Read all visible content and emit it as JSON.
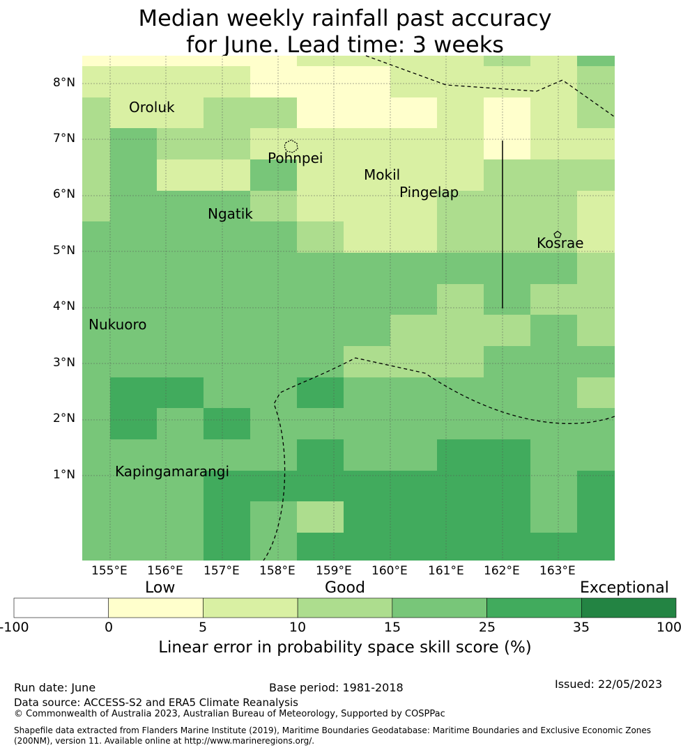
{
  "title": {
    "line1": "Median weekly rainfall past accuracy",
    "line2": "for June. Lead time: 3 weeks"
  },
  "map": {
    "lon_range": [
      154.5,
      164.0
    ],
    "lat_range": [
      -0.5,
      8.5
    ],
    "lon_ticks": [
      "155°E",
      "156°E",
      "157°E",
      "158°E",
      "159°E",
      "160°E",
      "161°E",
      "162°E",
      "163°E"
    ],
    "lat_ticks": [
      "8°N",
      "7°N",
      "6°N",
      "5°N",
      "4°N",
      "3°N",
      "2°N",
      "1°N"
    ],
    "places": [
      "Oroluk",
      "Pohnpei",
      "Mokil",
      "Pingelap",
      "Ngatik",
      "Kosrae",
      "Nukuoro",
      "Kapingamarangi"
    ],
    "boundary_lines": "dashed EEZ boundaries",
    "grid": true
  },
  "colorbar": {
    "title": "Linear error in probability space skill score (%)",
    "categories": [
      "Low",
      "Good",
      "Exceptional"
    ],
    "ticks": [
      "-100",
      "0",
      "5",
      "10",
      "15",
      "25",
      "35",
      "100"
    ],
    "colors": [
      "#ffffff",
      "#ffffcc",
      "#d9f0a3",
      "#addd8e",
      "#78c679",
      "#41ab5d",
      "#238443"
    ]
  },
  "footer": {
    "run_date": "Run date: June",
    "base_period": "Base period: 1981-2018",
    "issued": "Issued: 22/05/2023",
    "data_source": "Data source: ACCESS-S2 and ERA5 Climate Reanalysis",
    "copyright": "© Commonwealth of Australia 2023, Australian Bureau of Meteorology, Supported by COSPPac",
    "shapefile": "Shapefile data extracted from Flanders Marine Institute (2019), Maritime Boundaries Geodatabase: Maritime Boundaries and Exclusive Economic Zones (200NM), version 11. Available online at http://www.marineregions.org/."
  }
}
